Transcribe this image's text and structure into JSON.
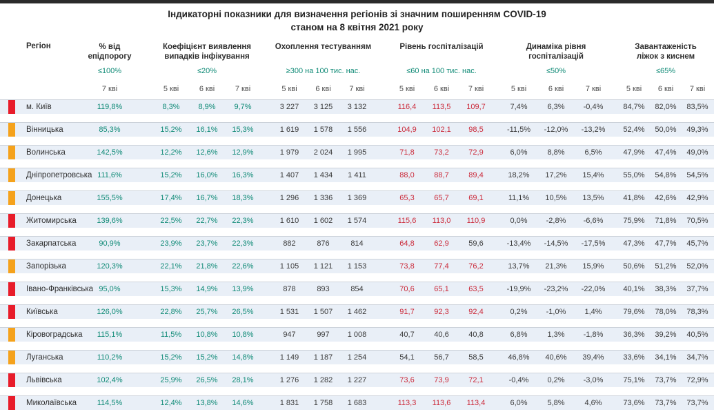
{
  "title": {
    "line1": "Індикаторні показники для визначення регіонів зі значним поширенням COVID-19",
    "line2": "станом на 8 квітня 2021 року"
  },
  "colors": {
    "top_bar": "#2b2b2b",
    "row_background": "#e9eff7",
    "marker_red": "#e81c2a",
    "marker_orange": "#f5a21c",
    "value_teal": "#0f8a76",
    "value_alert_red": "#cb2939",
    "value_dark": "#3a3a3a"
  },
  "table": {
    "region_header": "Регіон",
    "columns": [
      {
        "title": "% від\nепідпорогу",
        "threshold": "≤100%",
        "dates": [
          "7 кві"
        ]
      },
      {
        "title": "Коефіцієнт виявлення\nвипадків інфікування",
        "threshold": "≤20%",
        "dates": [
          "5 кві",
          "6 кві",
          "7 кві"
        ]
      },
      {
        "title": "Охоплення тестуванням",
        "threshold": "≥300 на 100 тис. нас.",
        "dates": [
          "5 кві",
          "6 кві",
          "7 кві"
        ]
      },
      {
        "title": "Рівень госпіталізацій",
        "threshold": "≤60 на 100 тис. нас.",
        "dates": [
          "5 кві",
          "6 кві",
          "7 кві"
        ]
      },
      {
        "title": "Динаміка рівня\nгоспіталізацій",
        "threshold": "≤50%",
        "dates": [
          "5 кві",
          "6 кві",
          "7 кві"
        ]
      },
      {
        "title": "Завантаженість\nліжок з киснем",
        "threshold": "≤65%",
        "dates": [
          "5 кві",
          "6 кві",
          "7 кві"
        ]
      }
    ],
    "rows": [
      {
        "region": "м. Київ",
        "marker": "red",
        "epid": "119,8%",
        "coef": [
          "8,3%",
          "8,9%",
          "9,7%"
        ],
        "test": [
          "3 227",
          "3 125",
          "3 132"
        ],
        "hosp": [
          "116,4",
          "113,5",
          "109,7"
        ],
        "hosp_alert": [
          true,
          true,
          true
        ],
        "dyn": [
          "7,4%",
          "6,3%",
          "-0,4%"
        ],
        "beds": [
          "84,7%",
          "82,0%",
          "83,5%"
        ]
      },
      {
        "region": "Вінницька",
        "marker": "orange",
        "epid": "85,3%",
        "coef": [
          "15,2%",
          "16,1%",
          "15,3%"
        ],
        "test": [
          "1 619",
          "1 578",
          "1 556"
        ],
        "hosp": [
          "104,9",
          "102,1",
          "98,5"
        ],
        "hosp_alert": [
          true,
          true,
          true
        ],
        "dyn": [
          "-11,5%",
          "-12,0%",
          "-13,2%"
        ],
        "beds": [
          "52,4%",
          "50,0%",
          "49,3%"
        ]
      },
      {
        "region": "Волинська",
        "marker": "orange",
        "epid": "142,5%",
        "coef": [
          "12,2%",
          "12,6%",
          "12,9%"
        ],
        "test": [
          "1 979",
          "2 024",
          "1 995"
        ],
        "hosp": [
          "71,8",
          "73,2",
          "72,9"
        ],
        "hosp_alert": [
          true,
          true,
          true
        ],
        "dyn": [
          "6,0%",
          "8,8%",
          "6,5%"
        ],
        "beds": [
          "47,9%",
          "47,4%",
          "49,0%"
        ]
      },
      {
        "region": "Дніпропетровська",
        "marker": "orange",
        "epid": "111,6%",
        "coef": [
          "15,2%",
          "16,0%",
          "16,3%"
        ],
        "test": [
          "1 407",
          "1 434",
          "1 411"
        ],
        "hosp": [
          "88,0",
          "88,7",
          "89,4"
        ],
        "hosp_alert": [
          true,
          true,
          true
        ],
        "dyn": [
          "18,2%",
          "17,2%",
          "15,4%"
        ],
        "beds": [
          "55,0%",
          "54,8%",
          "54,5%"
        ]
      },
      {
        "region": "Донецька",
        "marker": "orange",
        "epid": "155,5%",
        "coef": [
          "17,4%",
          "16,7%",
          "18,3%"
        ],
        "test": [
          "1 296",
          "1 336",
          "1 369"
        ],
        "hosp": [
          "65,3",
          "65,7",
          "69,1"
        ],
        "hosp_alert": [
          true,
          true,
          true
        ],
        "dyn": [
          "11,1%",
          "10,5%",
          "13,5%"
        ],
        "beds": [
          "41,8%",
          "42,6%",
          "42,9%"
        ]
      },
      {
        "region": "Житомирська",
        "marker": "red",
        "epid": "139,6%",
        "coef": [
          "22,5%",
          "22,7%",
          "22,3%"
        ],
        "test": [
          "1 610",
          "1 602",
          "1 574"
        ],
        "hosp": [
          "115,6",
          "113,0",
          "110,9"
        ],
        "hosp_alert": [
          true,
          true,
          true
        ],
        "dyn": [
          "0,0%",
          "-2,8%",
          "-6,6%"
        ],
        "beds": [
          "75,9%",
          "71,8%",
          "70,5%"
        ]
      },
      {
        "region": "Закарпатська",
        "marker": "red",
        "epid": "90,9%",
        "coef": [
          "23,9%",
          "23,7%",
          "22,3%"
        ],
        "test": [
          "882",
          "876",
          "814"
        ],
        "hosp": [
          "64,8",
          "62,9",
          "59,6"
        ],
        "hosp_alert": [
          true,
          true,
          false
        ],
        "dyn": [
          "-13,4%",
          "-14,5%",
          "-17,5%"
        ],
        "beds": [
          "47,3%",
          "47,7%",
          "45,7%"
        ]
      },
      {
        "region": "Запорізька",
        "marker": "orange",
        "epid": "120,3%",
        "coef": [
          "22,1%",
          "21,8%",
          "22,6%"
        ],
        "test": [
          "1 105",
          "1 121",
          "1 153"
        ],
        "hosp": [
          "73,8",
          "77,4",
          "76,2"
        ],
        "hosp_alert": [
          true,
          true,
          true
        ],
        "dyn": [
          "13,7%",
          "21,3%",
          "15,9%"
        ],
        "beds": [
          "50,6%",
          "51,2%",
          "52,0%"
        ]
      },
      {
        "region": "Івано-Франківська",
        "marker": "red",
        "epid": "95,0%",
        "coef": [
          "15,3%",
          "14,9%",
          "13,9%"
        ],
        "test": [
          "878",
          "893",
          "854"
        ],
        "hosp": [
          "70,6",
          "65,1",
          "63,5"
        ],
        "hosp_alert": [
          true,
          true,
          true
        ],
        "dyn": [
          "-19,9%",
          "-23,2%",
          "-22,0%"
        ],
        "beds": [
          "40,1%",
          "38,3%",
          "37,7%"
        ]
      },
      {
        "region": "Київська",
        "marker": "red",
        "epid": "126,0%",
        "coef": [
          "22,8%",
          "25,7%",
          "26,5%"
        ],
        "test": [
          "1 531",
          "1 507",
          "1 462"
        ],
        "hosp": [
          "91,7",
          "92,3",
          "92,4"
        ],
        "hosp_alert": [
          true,
          true,
          true
        ],
        "dyn": [
          "0,2%",
          "-1,0%",
          "1,4%"
        ],
        "beds": [
          "79,6%",
          "78,0%",
          "78,3%"
        ]
      },
      {
        "region": "Кіровоградська",
        "marker": "orange",
        "epid": "115,1%",
        "coef": [
          "11,5%",
          "10,8%",
          "10,8%"
        ],
        "test": [
          "947",
          "997",
          "1 008"
        ],
        "hosp": [
          "40,7",
          "40,6",
          "40,8"
        ],
        "hosp_alert": [
          false,
          false,
          false
        ],
        "dyn": [
          "6,8%",
          "1,3%",
          "-1,8%"
        ],
        "beds": [
          "36,3%",
          "39,2%",
          "40,5%"
        ]
      },
      {
        "region": "Луганська",
        "marker": "orange",
        "epid": "110,2%",
        "coef": [
          "15,2%",
          "15,2%",
          "14,8%"
        ],
        "test": [
          "1 149",
          "1 187",
          "1 254"
        ],
        "hosp": [
          "54,1",
          "56,7",
          "58,5"
        ],
        "hosp_alert": [
          false,
          false,
          false
        ],
        "dyn": [
          "46,8%",
          "40,6%",
          "39,4%"
        ],
        "beds": [
          "33,6%",
          "34,1%",
          "34,7%"
        ]
      },
      {
        "region": "Львівська",
        "marker": "red",
        "epid": "102,4%",
        "coef": [
          "25,9%",
          "26,5%",
          "28,1%"
        ],
        "test": [
          "1 276",
          "1 282",
          "1 227"
        ],
        "hosp": [
          "73,6",
          "73,9",
          "72,1"
        ],
        "hosp_alert": [
          true,
          true,
          true
        ],
        "dyn": [
          "-0,4%",
          "0,2%",
          "-3,0%"
        ],
        "beds": [
          "75,1%",
          "73,7%",
          "72,9%"
        ]
      },
      {
        "region": "Миколаївська",
        "marker": "red",
        "epid": "114,5%",
        "coef": [
          "12,4%",
          "13,8%",
          "14,6%"
        ],
        "test": [
          "1 831",
          "1 758",
          "1 683"
        ],
        "hosp": [
          "113,3",
          "113,6",
          "113,4"
        ],
        "hosp_alert": [
          true,
          true,
          true
        ],
        "dyn": [
          "6,0%",
          "5,8%",
          "4,6%"
        ],
        "beds": [
          "73,6%",
          "73,7%",
          "73,7%"
        ]
      }
    ]
  }
}
